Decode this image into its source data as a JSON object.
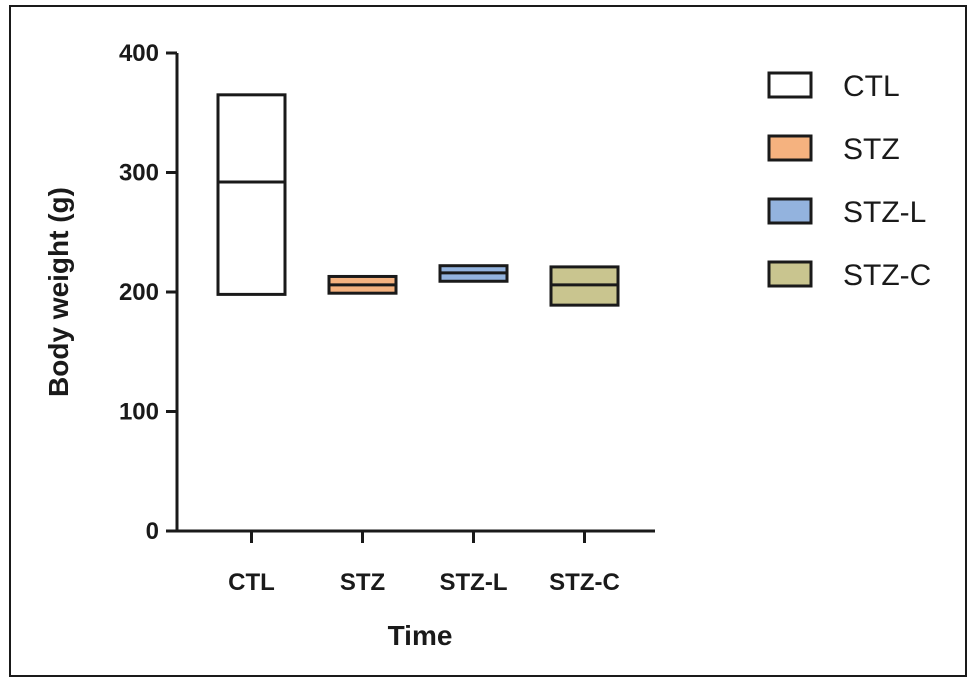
{
  "chart_data": {
    "type": "box",
    "categories": [
      "CTL",
      "STZ",
      "STZ-L",
      "STZ-C"
    ],
    "series": [
      {
        "name": "CTL",
        "min": 198,
        "median": 292,
        "max": 365,
        "color": "#ffffff"
      },
      {
        "name": "STZ",
        "min": 199,
        "median": 206,
        "max": 213,
        "color": "#f5b27f"
      },
      {
        "name": "STZ-L",
        "min": 209,
        "median": 216,
        "max": 222,
        "color": "#93b3de"
      },
      {
        "name": "STZ-C",
        "min": 189,
        "median": 206,
        "max": 221,
        "color": "#c9c58f"
      }
    ],
    "xlabel": "Time",
    "ylabel": "Body weight (g)",
    "ylim": [
      0,
      400
    ],
    "yticks": [
      "0",
      "100",
      "200",
      "300",
      "400"
    ],
    "legend": [
      "CTL",
      "STZ",
      "STZ-L",
      "STZ-C"
    ],
    "legend_position": "right",
    "grid": false
  }
}
